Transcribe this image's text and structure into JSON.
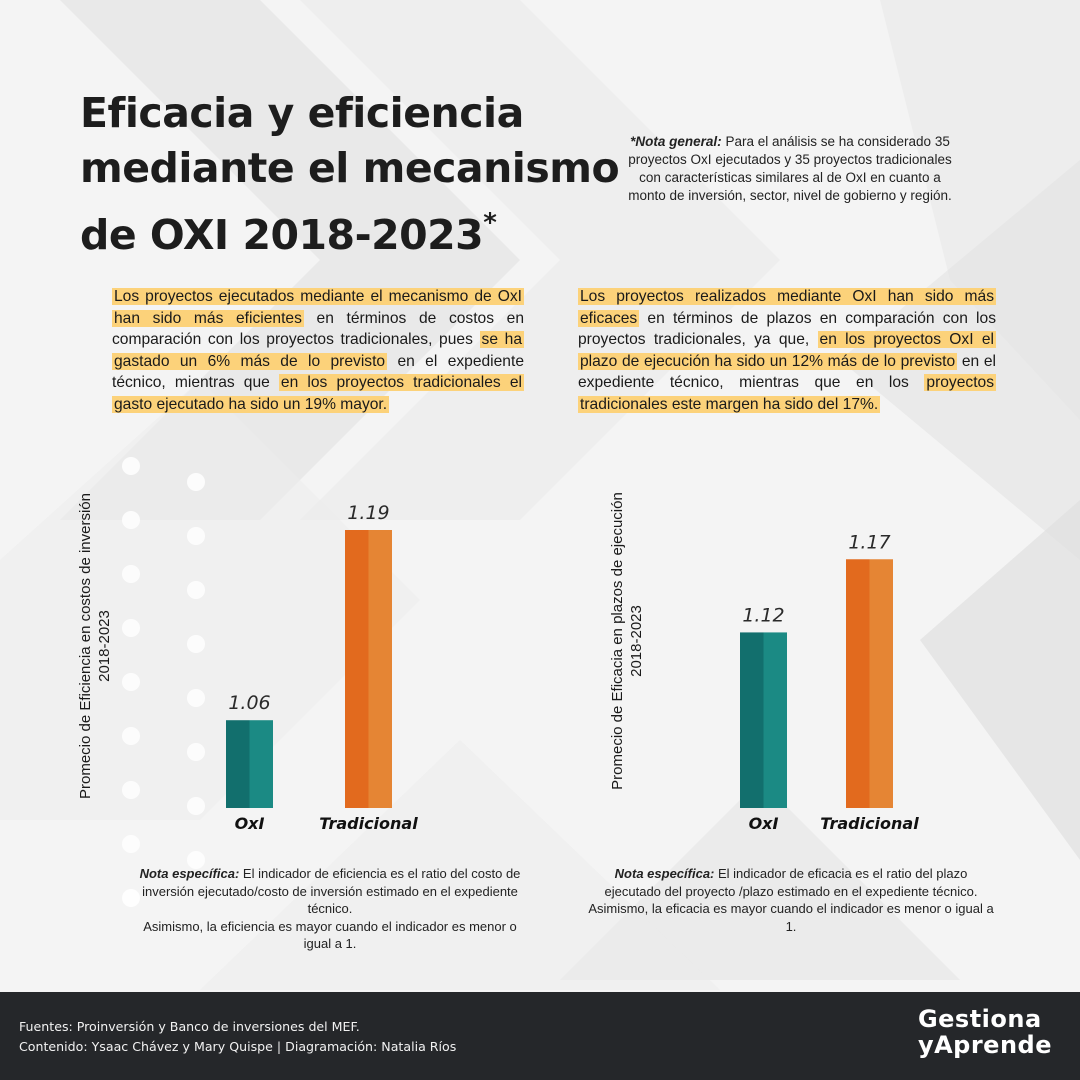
{
  "title": {
    "text": "Eficacia y eficiencia mediante el mecanismo de OXI 2018-2023",
    "line1": "Eficacia y eficiencia",
    "line2": "mediante el mecanismo",
    "line3": "de OXI 2018-2023",
    "asterisk": "*"
  },
  "note_general": {
    "label": "*Nota general:",
    "text": " Para el análisis se ha considerado 35 proyectos OxI ejecutados  y  35 proyectos tradicionales con características similares al de OxI en cuanto a monto de inversión, sector, nivel de gobierno y región."
  },
  "paragraph_left": [
    {
      "text": "Los proyectos ejecutados mediante el mecanismo de OxI han sido más eficientes",
      "highlight": true
    },
    {
      "text": " en términos de costos en comparación con los proyectos tradicionales, pues ",
      "highlight": false
    },
    {
      "text": "se ha gastado un 6% más de lo previsto",
      "highlight": true
    },
    {
      "text": " en el expediente técnico, mientras que ",
      "highlight": false
    },
    {
      "text": "en los proyectos tradicionales el gasto ejecutado ha sido un 19% mayor.",
      "highlight": true
    }
  ],
  "paragraph_right": [
    {
      "text": "Los proyectos realizados mediante OxI han sido más eficaces",
      "highlight": true
    },
    {
      "text": " en términos de plazos en comparación con los proyectos tradicionales, ya que, ",
      "highlight": false
    },
    {
      "text": "en los proyectos OxI el plazo de ejecución ha sido un 12% más de lo previsto",
      "highlight": true
    },
    {
      "text": " en el expediente técnico, mientras que en los ",
      "highlight": false
    },
    {
      "text": "proyectos tradicionales este margen ha sido del 17%.",
      "highlight": true
    }
  ],
  "colors": {
    "oxi": "#1b8a84",
    "oxi_dark": "#126f6d",
    "tradicional": "#e58534",
    "tradicional_dark": "#e26a1e",
    "highlight": "#fcd27a",
    "footer_bg": "#25272a"
  },
  "chart_data": [
    {
      "type": "bar",
      "title": "",
      "categories": [
        "OxI",
        "Tradicional"
      ],
      "values": [
        1.06,
        1.19
      ],
      "value_labels": [
        "1.06",
        "1.19"
      ],
      "xlabel": "",
      "ylabel": "Promecio de Eficiencia en costos de inversión 2018-2023",
      "ylabel_line1": "Promecio de Eficiencia en costos de inversión",
      "ylabel_line2": "2018-2023",
      "grid": false,
      "legend": "none"
    },
    {
      "type": "bar",
      "title": "",
      "categories": [
        "OxI",
        "Tradicional"
      ],
      "values": [
        1.12,
        1.17
      ],
      "value_labels": [
        "1.12",
        "1.17"
      ],
      "xlabel": "",
      "ylabel": "Promecio de Eficacia en plazos de ejecución 2018-2023",
      "ylabel_line1": "Promecio de Eficacia en plazos de ejecución",
      "ylabel_line2": "2018-2023",
      "grid": false,
      "legend": "none"
    }
  ],
  "note_specific_left": {
    "label": "Nota específica:",
    "text": " El indicador de eficiencia es el ratio del costo de inversión  ejecutado/costo de inversión estimado en el expediente técnico.",
    "text2": "Asimismo, la eficiencia es mayor cuando el indicador es menor o igual a 1."
  },
  "note_specific_right": {
    "label": "Nota específica:",
    "text": " El indicador de eficacia es el ratio del plazo ejecutado del proyecto /plazo estimado en el expediente técnico.",
    "text2": "Asimismo, la eficacia es mayor cuando el indicador es menor o igual a 1."
  },
  "footer": {
    "sources": "Fuentes: Proinversión y Banco de inversiones del MEF.",
    "credits": "Contenido: Ysaac Chávez y Mary Quispe | Diagramación: Natalia Ríos",
    "brand_line1": "Gestiona",
    "brand_line2": "yAprende"
  }
}
